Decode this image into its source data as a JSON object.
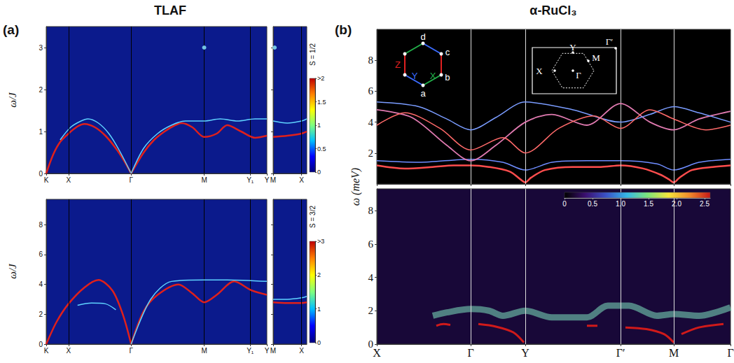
{
  "panel_labels": [
    "(a)",
    "(b)"
  ],
  "titles": [
    "TLAF",
    "α-RuCl₃"
  ],
  "chart_data": [
    {
      "type": "line",
      "ylabel": "ω/J",
      "xlim": [
        0,
        3.17
      ],
      "xticks": [
        {
          "value": 0,
          "label": "K"
        },
        {
          "value": 0.32,
          "label": "X"
        },
        {
          "value": 1.22,
          "label": "Γ"
        },
        {
          "value": 2.27,
          "label": "M"
        },
        {
          "value": 2.93,
          "label": "Y₁"
        },
        {
          "value": 3.17,
          "label": "Y"
        }
      ],
      "ylim": [
        0,
        3.5
      ],
      "yticks": [
        0,
        1,
        2,
        3
      ],
      "grid": true,
      "colorbar": {
        "range": [
          0,
          2
        ],
        "ticks": [
          0,
          0.5,
          1,
          1.5,
          {
            "value": 2,
            "label": ">2"
          }
        ],
        "label": "S = 1/2"
      },
      "series": [
        {
          "color": "#e0201b",
          "x": [
            0,
            0.1,
            0.2,
            0.32,
            0.45,
            0.55,
            0.7,
            0.85,
            1.0,
            1.12,
            1.22
          ],
          "values": [
            0,
            0.45,
            0.75,
            0.95,
            1.12,
            1.18,
            1.1,
            0.9,
            0.6,
            0.3,
            0
          ]
        },
        {
          "color": "#5fd3ff",
          "x": [
            0.2,
            0.35,
            0.5,
            0.6,
            0.75,
            0.9,
            1.05,
            1.22
          ],
          "values": [
            0.8,
            1.1,
            1.25,
            1.3,
            1.2,
            0.95,
            0.55,
            0
          ]
        },
        {
          "color": "#e0201b",
          "x": [
            1.22,
            1.4,
            1.55,
            1.7,
            1.85,
            1.95,
            2.1,
            2.27,
            2.45,
            2.6,
            2.8,
            3.0,
            3.17
          ],
          "values": [
            0,
            0.5,
            0.8,
            1.0,
            1.15,
            1.2,
            1.1,
            0.87,
            0.95,
            1.15,
            1.0,
            0.85,
            0.9
          ]
        },
        {
          "color": "#5fd3ff",
          "x": [
            1.22,
            1.4,
            1.6,
            1.8,
            2.0,
            2.27,
            2.5,
            2.75,
            3.0,
            3.17
          ],
          "values": [
            0,
            0.6,
            0.95,
            1.15,
            1.25,
            1.25,
            1.3,
            1.25,
            1.3,
            1.3
          ]
        },
        {
          "type": "scatter",
          "color": "#8ff0ff",
          "x": [
            2.27
          ],
          "values": [
            3.0
          ]
        }
      ]
    },
    {
      "type": "line",
      "tick_labels": "x",
      "xlim": [
        0,
        0.45
      ],
      "xticks": [
        {
          "value": 0,
          "label": "M"
        },
        {
          "value": 0.38,
          "label": "X"
        }
      ],
      "ylim": [
        0,
        3.5
      ],
      "yticks": [
        0,
        1,
        2,
        3
      ],
      "grid": true,
      "series": [
        {
          "color": "#e0201b",
          "x": [
            0,
            0.19,
            0.38,
            0.45
          ],
          "values": [
            0.87,
            0.9,
            0.95,
            1.0
          ]
        },
        {
          "color": "#5fd3ff",
          "x": [
            0,
            0.19,
            0.38,
            0.45
          ],
          "values": [
            1.25,
            1.2,
            1.25,
            1.3
          ]
        },
        {
          "type": "scatter",
          "color": "#8ff0ff",
          "x": [
            0.02
          ],
          "values": [
            3.0
          ]
        }
      ]
    },
    {
      "type": "line",
      "ylabel": "ω/J",
      "xlim": [
        0,
        3.17
      ],
      "xticks": [
        {
          "value": 0,
          "label": "K"
        },
        {
          "value": 0.32,
          "label": "X"
        },
        {
          "value": 1.22,
          "label": "Γ"
        },
        {
          "value": 2.27,
          "label": "M"
        },
        {
          "value": 2.93,
          "label": "Y₁"
        },
        {
          "value": 3.17,
          "label": "Y"
        }
      ],
      "ylim": [
        0,
        9.7
      ],
      "yticks": [
        0,
        2,
        4,
        6,
        8
      ],
      "grid": true,
      "colorbar": {
        "range": [
          0,
          3
        ],
        "ticks": [
          0,
          1,
          2,
          {
            "value": 3,
            "label": ">3"
          }
        ],
        "label": "S = 3/2"
      },
      "series": [
        {
          "color": "#e0201b",
          "x": [
            0,
            0.15,
            0.32,
            0.55,
            0.75,
            0.95,
            1.1,
            1.22
          ],
          "values": [
            0,
            1.5,
            2.7,
            3.8,
            4.3,
            3.6,
            2.0,
            0
          ]
        },
        {
          "color": "#5fd3ff",
          "x": [
            0.45,
            0.65,
            0.85,
            1.0
          ],
          "values": [
            2.6,
            2.75,
            2.7,
            2.3
          ]
        },
        {
          "color": "#e0201b",
          "x": [
            1.22,
            1.4,
            1.6,
            1.9,
            2.1,
            2.27,
            2.45,
            2.7,
            2.95,
            3.17
          ],
          "values": [
            0,
            2.2,
            3.3,
            4.0,
            3.4,
            2.8,
            3.3,
            4.2,
            3.6,
            3.3
          ]
        },
        {
          "color": "#5fd3ff",
          "x": [
            1.22,
            1.5,
            1.8,
            2.27,
            2.6,
            3.17
          ],
          "values": [
            0,
            3.0,
            4.2,
            4.3,
            4.3,
            4.2
          ]
        }
      ]
    },
    {
      "type": "line",
      "tick_labels": "x",
      "xlim": [
        0,
        0.45
      ],
      "xticks": [
        {
          "value": 0,
          "label": "M"
        },
        {
          "value": 0.38,
          "label": "X"
        }
      ],
      "ylim": [
        0,
        9.7
      ],
      "yticks": [
        0,
        2,
        4,
        6,
        8
      ],
      "grid": true,
      "series": [
        {
          "color": "#e0201b",
          "x": [
            0,
            0.19,
            0.38,
            0.45
          ],
          "values": [
            2.8,
            2.75,
            2.75,
            2.8
          ]
        },
        {
          "color": "#5fd3ff",
          "x": [
            0,
            0.19,
            0.38,
            0.45
          ],
          "values": [
            3.0,
            3.0,
            3.1,
            3.2
          ]
        }
      ]
    },
    {
      "type": "line",
      "ylabel": "ω (meV)",
      "tick_labels": "y",
      "xlim": [
        0,
        5.05
      ],
      "xticks": [
        {
          "value": 0,
          "label": "X"
        },
        {
          "value": 1.34,
          "label": "Γ"
        },
        {
          "value": 2.12,
          "label": "Y"
        },
        {
          "value": 3.48,
          "label": "Γ′"
        },
        {
          "value": 4.24,
          "label": "M"
        },
        {
          "value": 5.05,
          "label": "Γ"
        }
      ],
      "ylim": [
        0,
        10
      ],
      "yticks": [
        2,
        4,
        6,
        8
      ],
      "grid": true,
      "annotations": {
        "sites": [
          "a",
          "b",
          "c",
          "d"
        ],
        "bonds": [
          "X",
          "Y",
          "Z"
        ],
        "zone": [
          "X",
          "Y",
          "M",
          "Γ",
          "Γ′"
        ]
      },
      "series": [
        {
          "color": "#ff4d4d",
          "x": [
            0,
            0.4,
            0.8,
            1.1,
            1.34,
            1.6,
            1.9,
            2.05,
            2.12,
            2.2,
            2.4,
            2.8,
            3.2,
            3.48,
            3.8,
            4.05,
            4.17,
            4.24,
            4.32,
            4.5,
            4.8,
            5.05
          ],
          "values": [
            1.2,
            1.0,
            1.1,
            1.2,
            1.2,
            1.1,
            0.8,
            0.3,
            0.1,
            0.4,
            0.9,
            1.1,
            1.1,
            1.2,
            1.0,
            0.6,
            0.3,
            0.1,
            0.4,
            0.9,
            1.1,
            1.2
          ]
        },
        {
          "color": "#6f8dff",
          "x": [
            0,
            0.6,
            1.34,
            1.8,
            2.12,
            2.5,
            3.0,
            3.48,
            4.0,
            4.24,
            4.6,
            5.05
          ],
          "values": [
            1.5,
            1.4,
            1.6,
            1.4,
            0.9,
            1.4,
            1.5,
            1.5,
            1.3,
            0.9,
            1.4,
            1.6
          ]
        },
        {
          "color": "#e07ab0",
          "x": [
            0,
            0.5,
            1.0,
            1.34,
            1.7,
            2.12,
            2.5,
            3.0,
            3.48,
            3.9,
            4.24,
            4.6,
            5.05
          ],
          "values": [
            4.8,
            4.3,
            2.5,
            1.5,
            2.5,
            4.0,
            4.5,
            3.8,
            5.2,
            4.0,
            3.5,
            4.2,
            4.7
          ]
        },
        {
          "color": "#7a9cff",
          "x": [
            0,
            0.6,
            1.0,
            1.34,
            1.7,
            2.12,
            2.8,
            3.48,
            3.9,
            4.24,
            4.6,
            5.05
          ],
          "values": [
            5.3,
            5.0,
            4.2,
            3.5,
            4.3,
            5.3,
            4.8,
            4.0,
            4.5,
            5.0,
            4.6,
            4.0
          ]
        },
        {
          "color": "#ff6a6a",
          "x": [
            0,
            0.4,
            0.9,
            1.34,
            1.8,
            2.12,
            2.6,
            3.1,
            3.48,
            3.9,
            4.24,
            4.7,
            5.05
          ],
          "values": [
            3.8,
            4.6,
            3.6,
            2.2,
            3.0,
            2.0,
            3.6,
            4.4,
            3.6,
            4.8,
            4.2,
            3.5,
            3.8
          ]
        }
      ]
    },
    {
      "type": "line",
      "xlim": [
        0,
        5.05
      ],
      "xticks": [
        {
          "value": 0,
          "label": "X"
        },
        {
          "value": 1.34,
          "label": "Γ"
        },
        {
          "value": 2.12,
          "label": "Y"
        },
        {
          "value": 3.48,
          "label": "Γ′"
        },
        {
          "value": 4.24,
          "label": "M"
        },
        {
          "value": 5.05,
          "label": "Γ"
        }
      ],
      "ylim": [
        0,
        9.3
      ],
      "yticks": [
        0,
        2,
        4,
        6,
        8
      ],
      "grid": true,
      "colorbar": {
        "range": [
          0,
          2.6
        ],
        "ticks": [
          0,
          0.5,
          {
            "value": 1,
            "label": "1.0"
          },
          1.5,
          {
            "value": 2,
            "label": "2.0"
          },
          2.5
        ]
      },
      "series": [
        {
          "color": "#7fe3c0",
          "x": [
            0.8,
            1.0,
            1.34,
            1.6,
            1.8,
            2.12,
            2.5,
            3.0,
            3.3,
            3.6,
            4.0,
            4.24,
            4.6,
            5.05
          ],
          "values": [
            1.7,
            1.9,
            2.1,
            2.0,
            1.7,
            2.0,
            1.6,
            1.6,
            2.3,
            2.3,
            1.7,
            1.8,
            1.7,
            2.2
          ]
        },
        {
          "color": "#d01a1a",
          "x": [
            0.85,
            0.95,
            1.05,
            1.25,
            1.45,
            1.7,
            1.95,
            2.1,
            2.6,
            3.0,
            3.15,
            3.35,
            3.55,
            3.85,
            4.1,
            4.24,
            4.3,
            4.35,
            4.6,
            4.95
          ],
          "values": [
            1.1,
            1.2,
            1.15,
            null,
            1.2,
            1.05,
            0.7,
            0.1,
            null,
            1.1,
            1.1,
            null,
            1.0,
            0.9,
            0.6,
            0.1,
            null,
            0.6,
            1.0,
            1.2
          ]
        }
      ]
    }
  ]
}
